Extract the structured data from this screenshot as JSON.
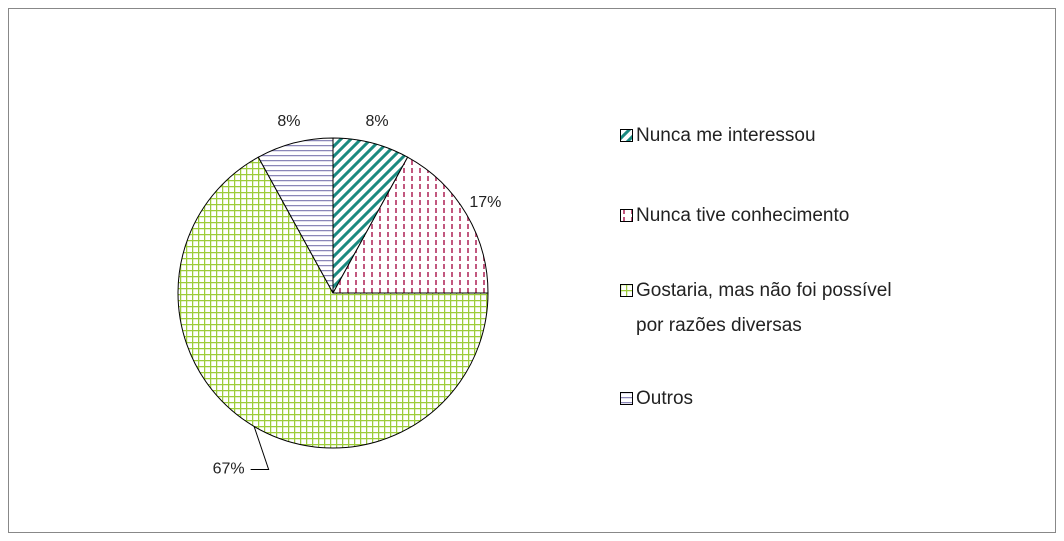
{
  "chart_data": {
    "type": "pie",
    "categories": [
      "Nunca me interessou",
      "Nunca tive conhecimento",
      "Gostaria, mas não foi possível por razões diversas",
      "Outros"
    ],
    "values": [
      8,
      17,
      67,
      8
    ],
    "value_labels": [
      "8%",
      "17%",
      "67%",
      "8%"
    ],
    "colors": [
      "#1b8a80",
      "#c2587f",
      "#9ccc3a",
      "#8a86b8"
    ],
    "legend": "right"
  }
}
